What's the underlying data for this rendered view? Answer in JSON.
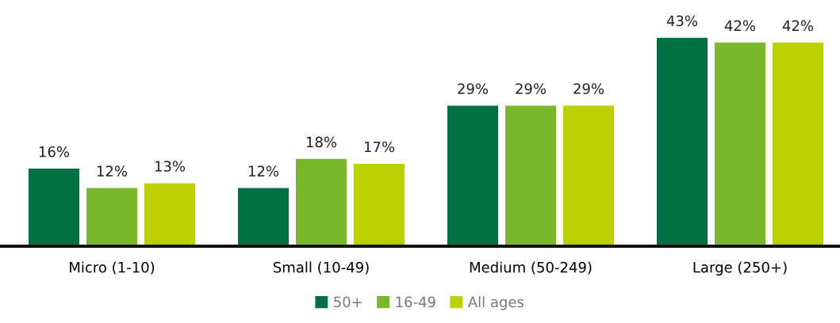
{
  "chart_data": {
    "type": "bar",
    "categories": [
      "Micro (1-10)",
      "Small (10-49)",
      "Medium (50-249)",
      "Large (250+)"
    ],
    "series": [
      {
        "name": "50+",
        "color": "#006f44",
        "values": [
          16,
          12,
          29,
          43
        ],
        "value_labels": [
          "16%",
          "12%",
          "29%",
          "43%"
        ]
      },
      {
        "name": "16-49",
        "color": "#78b82a",
        "values": [
          12,
          18,
          29,
          42
        ],
        "value_labels": [
          "12%",
          "18%",
          "29%",
          "42%"
        ]
      },
      {
        "name": "All ages",
        "color": "#bccf00",
        "values": [
          13,
          17,
          29,
          42
        ],
        "value_labels": [
          "13%",
          "17%",
          "29%",
          "42%"
        ]
      }
    ],
    "grid": false,
    "legend": "bottom"
  }
}
